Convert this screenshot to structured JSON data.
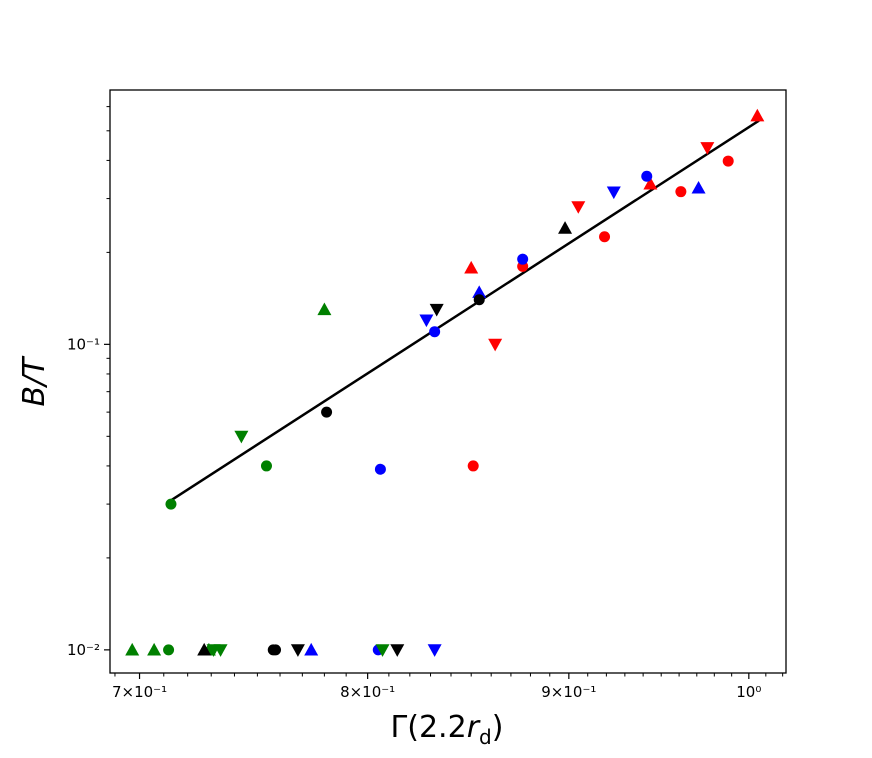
{
  "chart_data": {
    "type": "scatter",
    "title": "",
    "xlabel": "Γ(2.2r_d)",
    "ylabel": "B/T",
    "xscale": "log",
    "yscale": "log",
    "xlim": [
      0.688,
      1.022
    ],
    "ylim": [
      0.0084,
      0.68
    ],
    "grid": false,
    "legend": "none",
    "x_ticks": [
      {
        "value": 0.7,
        "label": "7×10⁻¹"
      },
      {
        "value": 0.8,
        "label": "8×10⁻¹"
      },
      {
        "value": 0.9,
        "label": "9×10⁻¹"
      },
      {
        "value": 1.0,
        "label": "10⁰"
      }
    ],
    "y_ticks": [
      {
        "value": 0.01,
        "label": "10⁻²"
      },
      {
        "value": 0.1,
        "label": "10⁻¹"
      }
    ],
    "fit_line": {
      "x": [
        0.712,
        1.006
      ],
      "y": [
        0.0305,
        0.54
      ],
      "color": "#000000"
    },
    "series": [
      {
        "color": "#ff0000",
        "marker": "circle",
        "points": [
          [
            0.851,
            0.04
          ],
          [
            0.876,
            0.18
          ],
          [
            0.919,
            0.225
          ],
          [
            0.961,
            0.316
          ],
          [
            0.988,
            0.398
          ]
        ]
      },
      {
        "color": "#ff0000",
        "marker": "triangle-up",
        "points": [
          [
            0.85,
            0.178
          ],
          [
            0.944,
            0.335
          ],
          [
            1.005,
            0.56
          ]
        ]
      },
      {
        "color": "#ff0000",
        "marker": "triangle-down",
        "points": [
          [
            0.862,
            0.1
          ],
          [
            0.905,
            0.282
          ],
          [
            0.976,
            0.44
          ]
        ]
      },
      {
        "color": "#0000ff",
        "marker": "circle",
        "points": [
          [
            0.805,
            0.01
          ],
          [
            0.806,
            0.039
          ],
          [
            0.832,
            0.11
          ],
          [
            0.876,
            0.19
          ],
          [
            0.942,
            0.355
          ]
        ]
      },
      {
        "color": "#0000ff",
        "marker": "triangle-up",
        "points": [
          [
            0.774,
            0.01
          ],
          [
            0.854,
            0.148
          ],
          [
            0.971,
            0.325
          ]
        ]
      },
      {
        "color": "#0000ff",
        "marker": "triangle-down",
        "points": [
          [
            0.828,
            0.12
          ],
          [
            0.832,
            0.01
          ],
          [
            0.924,
            0.315
          ]
        ]
      },
      {
        "color": "#008000",
        "marker": "circle",
        "points": [
          [
            0.713,
            0.03
          ],
          [
            0.712,
            0.01
          ],
          [
            0.754,
            0.04
          ]
        ]
      },
      {
        "color": "#008000",
        "marker": "triangle-up",
        "points": [
          [
            0.697,
            0.01
          ],
          [
            0.706,
            0.01
          ],
          [
            0.729,
            0.01
          ],
          [
            0.78,
            0.13
          ]
        ]
      },
      {
        "color": "#008000",
        "marker": "triangle-down",
        "points": [
          [
            0.731,
            0.01
          ],
          [
            0.734,
            0.01
          ],
          [
            0.743,
            0.05
          ],
          [
            0.807,
            0.01
          ]
        ]
      },
      {
        "color": "#000000",
        "marker": "circle",
        "points": [
          [
            0.757,
            0.01
          ],
          [
            0.758,
            0.01
          ],
          [
            0.781,
            0.06
          ],
          [
            0.854,
            0.14
          ]
        ]
      },
      {
        "color": "#000000",
        "marker": "triangle-up",
        "points": [
          [
            0.727,
            0.01
          ],
          [
            0.898,
            0.24
          ]
        ]
      },
      {
        "color": "#000000",
        "marker": "triangle-down",
        "points": [
          [
            0.768,
            0.01
          ],
          [
            0.814,
            0.01
          ],
          [
            0.833,
            0.13
          ]
        ]
      }
    ]
  }
}
